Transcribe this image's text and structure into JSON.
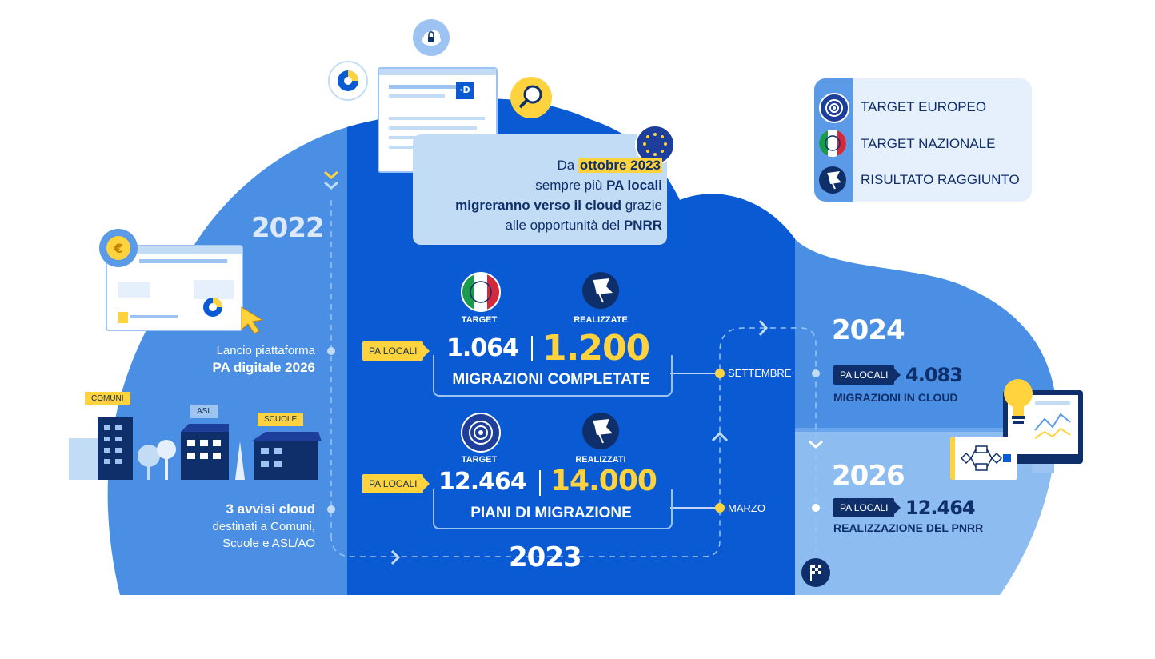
{
  "legend": {
    "items": [
      {
        "label": "TARGET EUROPEO",
        "icon": "eu-target-icon"
      },
      {
        "label": "TARGET NAZIONALE",
        "icon": "italy-target-icon"
      },
      {
        "label": "RISULTATO RAGGIUNTO",
        "icon": "flag-result-icon"
      }
    ]
  },
  "callout": {
    "prefix": "Da ",
    "highlight": "ottobre 2023",
    "line2_a": "sempre più ",
    "line2_b": "PA locali",
    "line3_a": "migreranno verso il cloud",
    "line3_b": " grazie",
    "line4_a": "alle opportunità del ",
    "line4_b": "PNRR"
  },
  "year2022": {
    "year": "2022",
    "launch_line1": "Lancio piattaforma",
    "launch_line2": "PA digitale 2026",
    "notice_line1": "3 avvisi cloud",
    "notice_line2": "destinati a Comuni,",
    "notice_line3": "Scuole e ASL/AO",
    "tags": [
      "COMUNI",
      "ASL",
      "SCUOLE"
    ]
  },
  "year2023": {
    "year": "2023",
    "row1": {
      "badge": "PA LOCALI",
      "target_label": "TARGET",
      "result_label": "REALIZZATE",
      "target": "1.064",
      "result": "1.200",
      "caption": "MIGRAZIONI COMPLETATE",
      "milestone": "SETTEMBRE"
    },
    "row2": {
      "badge": "PA LOCALI",
      "target_label": "TARGET",
      "result_label": "REALIZZATI",
      "target": "12.464",
      "result": "14.000",
      "caption": "PIANI DI MIGRAZIONE",
      "milestone": "MARZO"
    }
  },
  "year2024": {
    "year": "2024",
    "badge": "PA LOCALI",
    "value": "4.083",
    "caption": "MIGRAZIONI IN CLOUD"
  },
  "year2026": {
    "year": "2026",
    "badge": "PA LOCALI",
    "value": "12.464",
    "caption": "REALIZZAZIONE DEL PNRR"
  },
  "colors": {
    "cloud_light": "#4a8fe4",
    "cloud_center": "#0a5bd3",
    "cloud_right_bottom": "#8dbcf0",
    "accent_yellow": "#ffd33d",
    "navy": "#0f2f6b"
  }
}
